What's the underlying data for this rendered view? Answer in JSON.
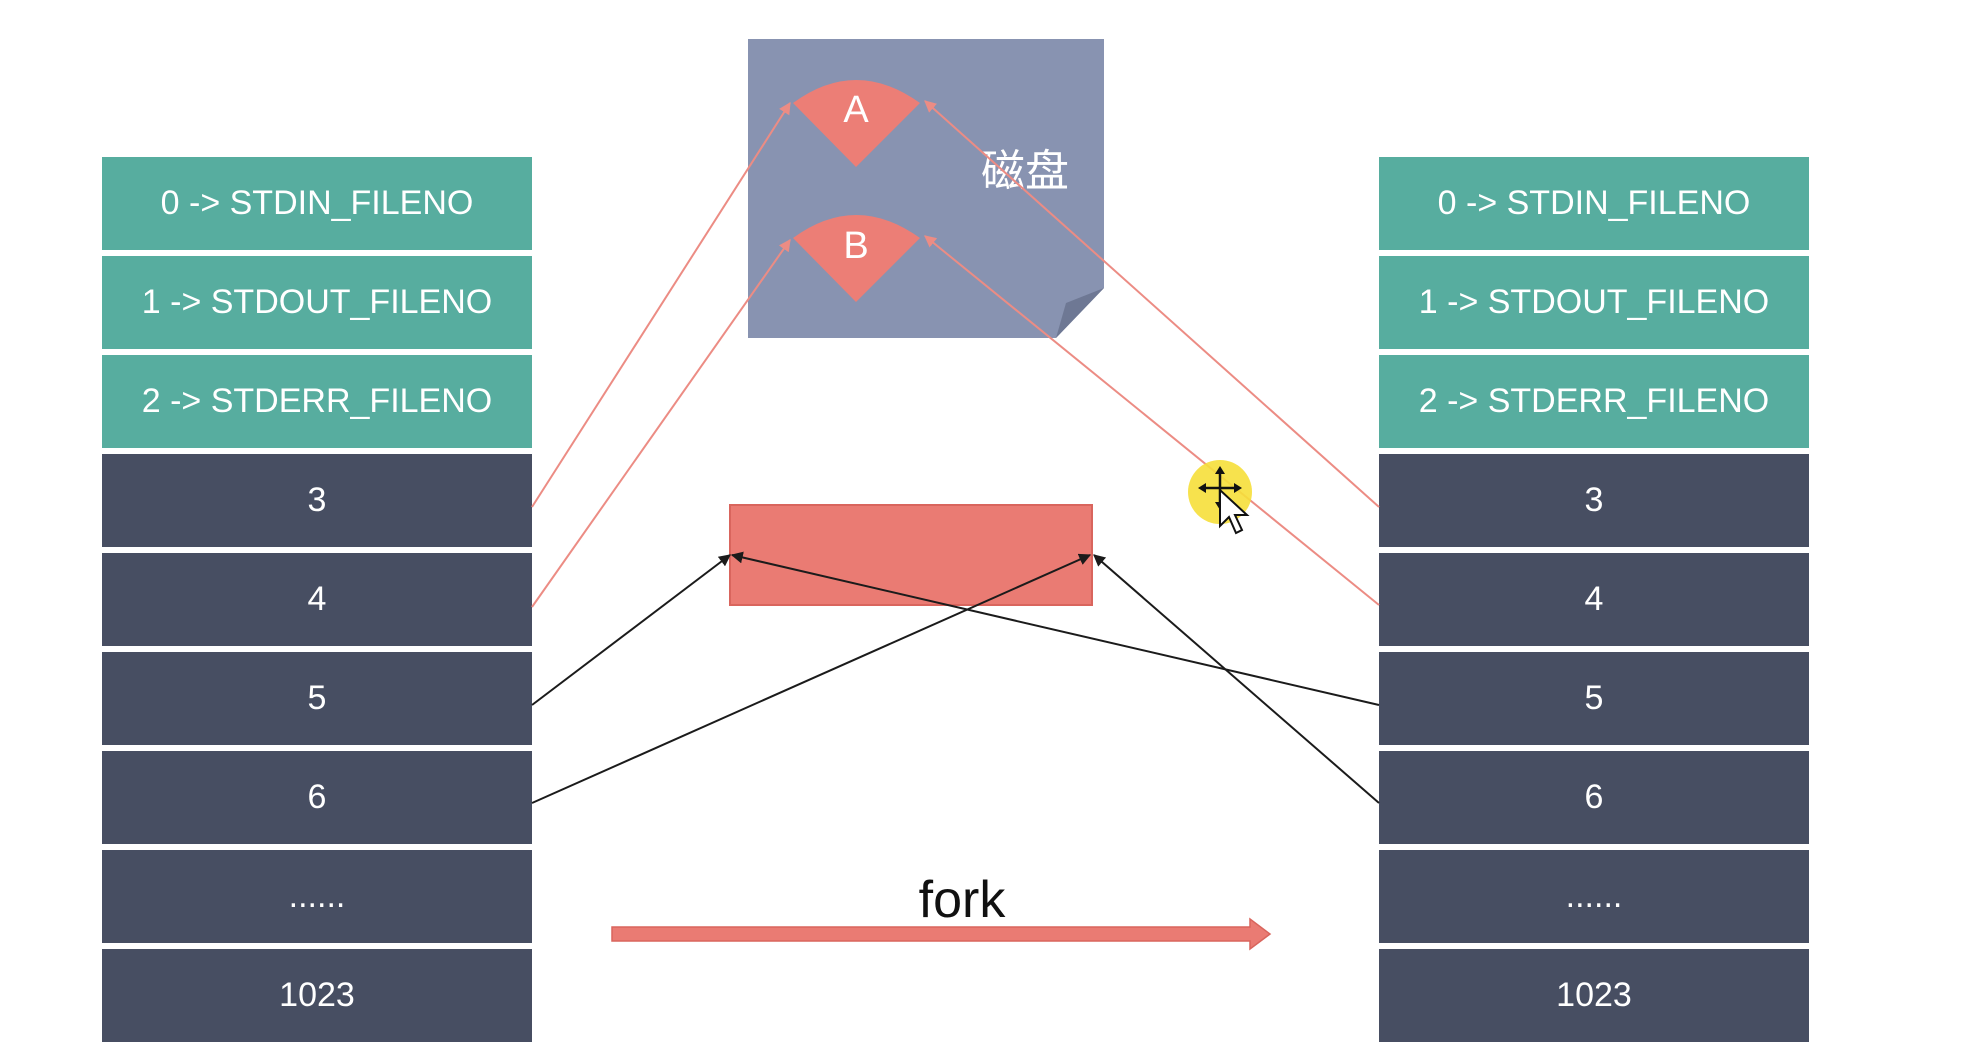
{
  "left_fd_table": {
    "rows": [
      {
        "label": "0 -> STDIN_FILENO",
        "kind": "std"
      },
      {
        "label": "1 -> STDOUT_FILENO",
        "kind": "std"
      },
      {
        "label": "2 -> STDERR_FILENO",
        "kind": "std"
      },
      {
        "label": "3",
        "kind": "user"
      },
      {
        "label": "4",
        "kind": "user"
      },
      {
        "label": "5",
        "kind": "user"
      },
      {
        "label": "6",
        "kind": "user"
      },
      {
        "label": "......",
        "kind": "user"
      },
      {
        "label": "1023",
        "kind": "user"
      }
    ]
  },
  "right_fd_table": {
    "rows": [
      {
        "label": "0 -> STDIN_FILENO",
        "kind": "std"
      },
      {
        "label": "1 -> STDOUT_FILENO",
        "kind": "std"
      },
      {
        "label": "2 -> STDERR_FILENO",
        "kind": "std"
      },
      {
        "label": "3",
        "kind": "user"
      },
      {
        "label": "4",
        "kind": "user"
      },
      {
        "label": "5",
        "kind": "user"
      },
      {
        "label": "6",
        "kind": "user"
      },
      {
        "label": "......",
        "kind": "user"
      },
      {
        "label": "1023",
        "kind": "user"
      }
    ]
  },
  "disk": {
    "label": "磁盘",
    "file_a": "A",
    "file_b": "B"
  },
  "fork_label": "fork",
  "colors": {
    "std_cell": "#57ad9f",
    "user_cell": "#474e62",
    "disk_bg": "#8893b1",
    "file_sector": "#ec7e76",
    "shared_box": "#ea7b73",
    "fork_arrow": "#ea7b73",
    "disk_link": "#ec8c84",
    "shared_link": "#1b1b1b",
    "cursor_highlight": "#f6df3a"
  }
}
